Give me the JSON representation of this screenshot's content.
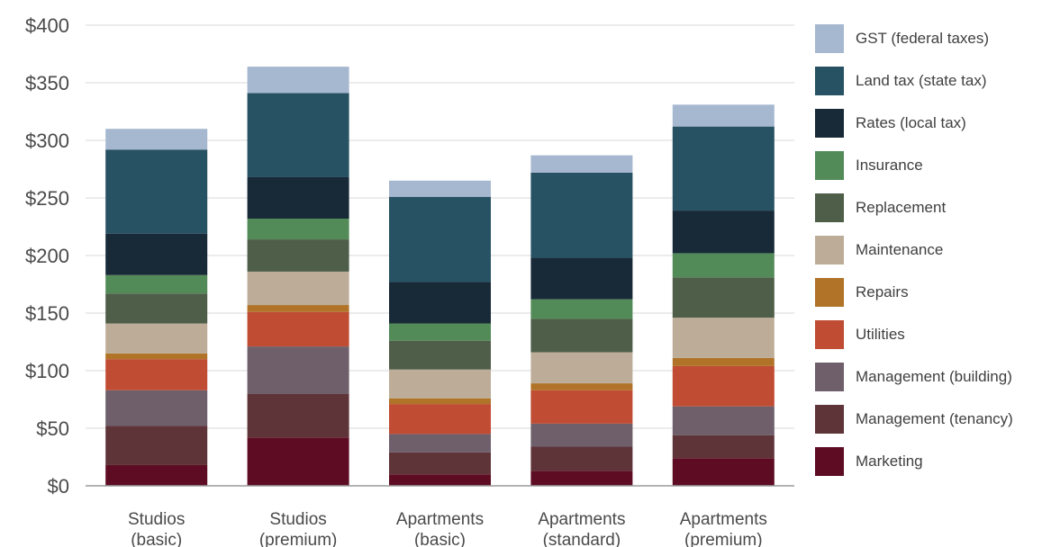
{
  "chart_data": {
    "type": "bar",
    "stacked": true,
    "categories": [
      [
        "Studios",
        "(basic)"
      ],
      [
        "Studios",
        "(premium)"
      ],
      [
        "Apartments",
        "(basic)"
      ],
      [
        "Apartments",
        "(standard)"
      ],
      [
        "Apartments",
        "(premium)"
      ]
    ],
    "ylim": [
      0,
      400
    ],
    "yticks": [
      0,
      50,
      100,
      150,
      200,
      250,
      300,
      350,
      400
    ],
    "ytick_labels": [
      "$0",
      "$50",
      "$100",
      "$150",
      "$200",
      "$250",
      "$300",
      "$350",
      "$400"
    ],
    "grid": true,
    "legend_position": "right",
    "series": [
      {
        "name": "Marketing",
        "color": "#5e0c23",
        "values": [
          18,
          42,
          10,
          13,
          24
        ]
      },
      {
        "name": "Management (tenancy)",
        "color": "#5f3439",
        "values": [
          34,
          38,
          19,
          21,
          20
        ]
      },
      {
        "name": "Management (building)",
        "color": "#6e5f6a",
        "values": [
          31,
          41,
          16,
          20,
          25
        ]
      },
      {
        "name": "Utilities",
        "color": "#bf4c33",
        "values": [
          27,
          30,
          26,
          29,
          35
        ]
      },
      {
        "name": "Repairs",
        "color": "#b07328",
        "values": [
          5,
          6,
          5,
          6,
          7
        ]
      },
      {
        "name": "Maintenance",
        "color": "#bdad98",
        "values": [
          26,
          29,
          25,
          27,
          35
        ]
      },
      {
        "name": "Replacement",
        "color": "#4e5e48",
        "values": [
          26,
          28,
          25,
          29,
          35
        ]
      },
      {
        "name": "Insurance",
        "color": "#528a58",
        "values": [
          16,
          18,
          15,
          17,
          21
        ]
      },
      {
        "name": "Rates (local tax)",
        "color": "#182a37",
        "values": [
          36,
          36,
          36,
          36,
          37
        ]
      },
      {
        "name": "Land tax (state tax)",
        "color": "#275264",
        "values": [
          73,
          73,
          74,
          74,
          73
        ]
      },
      {
        "name": "GST (federal taxes)",
        "color": "#a6b8d0",
        "values": [
          18,
          23,
          14,
          15,
          19
        ]
      }
    ]
  }
}
